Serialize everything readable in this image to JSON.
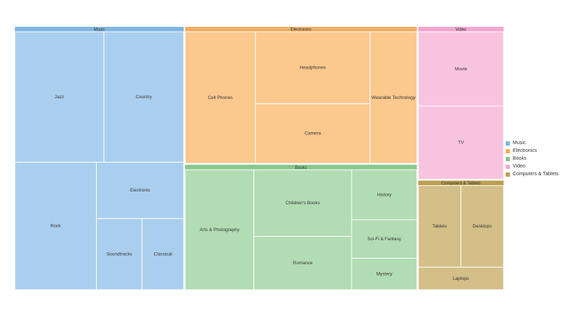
{
  "chart_data": {
    "type": "treemap",
    "legend_position": "right",
    "groups": [
      {
        "name": "Music",
        "color": "#7fb6e3",
        "leaf_color": "#aacfee",
        "items": [
          {
            "name": "Jazz",
            "value": 24.3
          },
          {
            "name": "Country",
            "value": 21.8
          },
          {
            "name": "Rock",
            "value": 21.8
          },
          {
            "name": "Electronic",
            "value": 10.3
          },
          {
            "name": "Soundtracks",
            "value": 6.8
          },
          {
            "name": "Classical",
            "value": 6.2
          }
        ]
      },
      {
        "name": "Electronics",
        "color": "#f6ad5e",
        "leaf_color": "#fbc88e",
        "items": [
          {
            "name": "Cell Phones",
            "value": 19.8
          },
          {
            "name": "Headphones",
            "value": 17.6
          },
          {
            "name": "Camera",
            "value": 14.6
          },
          {
            "name": "Wearable Technology",
            "value": 13.2
          }
        ]
      },
      {
        "name": "Books",
        "color": "#88c98c",
        "leaf_color": "#b2dcb3",
        "items": [
          {
            "name": "Arts & Photography",
            "value": 17.7
          },
          {
            "name": "Children's Books",
            "value": 14.0
          },
          {
            "name": "Romance",
            "value": 11.2
          },
          {
            "name": "History",
            "value": 7.0
          },
          {
            "name": "Sci-Fi & Fantasy",
            "value": 5.4
          },
          {
            "name": "Mystery",
            "value": 4.4
          }
        ]
      },
      {
        "name": "Video",
        "color": "#f4a6cf",
        "leaf_color": "#f8c3df",
        "items": [
          {
            "name": "Movie",
            "value": 13.6
          },
          {
            "name": "TV",
            "value": 13.4
          }
        ]
      },
      {
        "name": "Computers & Tablets",
        "color": "#bc9f4f",
        "leaf_color": "#d3bf87",
        "items": [
          {
            "name": "Tablets",
            "value": 7.6
          },
          {
            "name": "Desktops",
            "value": 7.6
          },
          {
            "name": "Laptops",
            "value": 4.2
          }
        ]
      }
    ]
  }
}
